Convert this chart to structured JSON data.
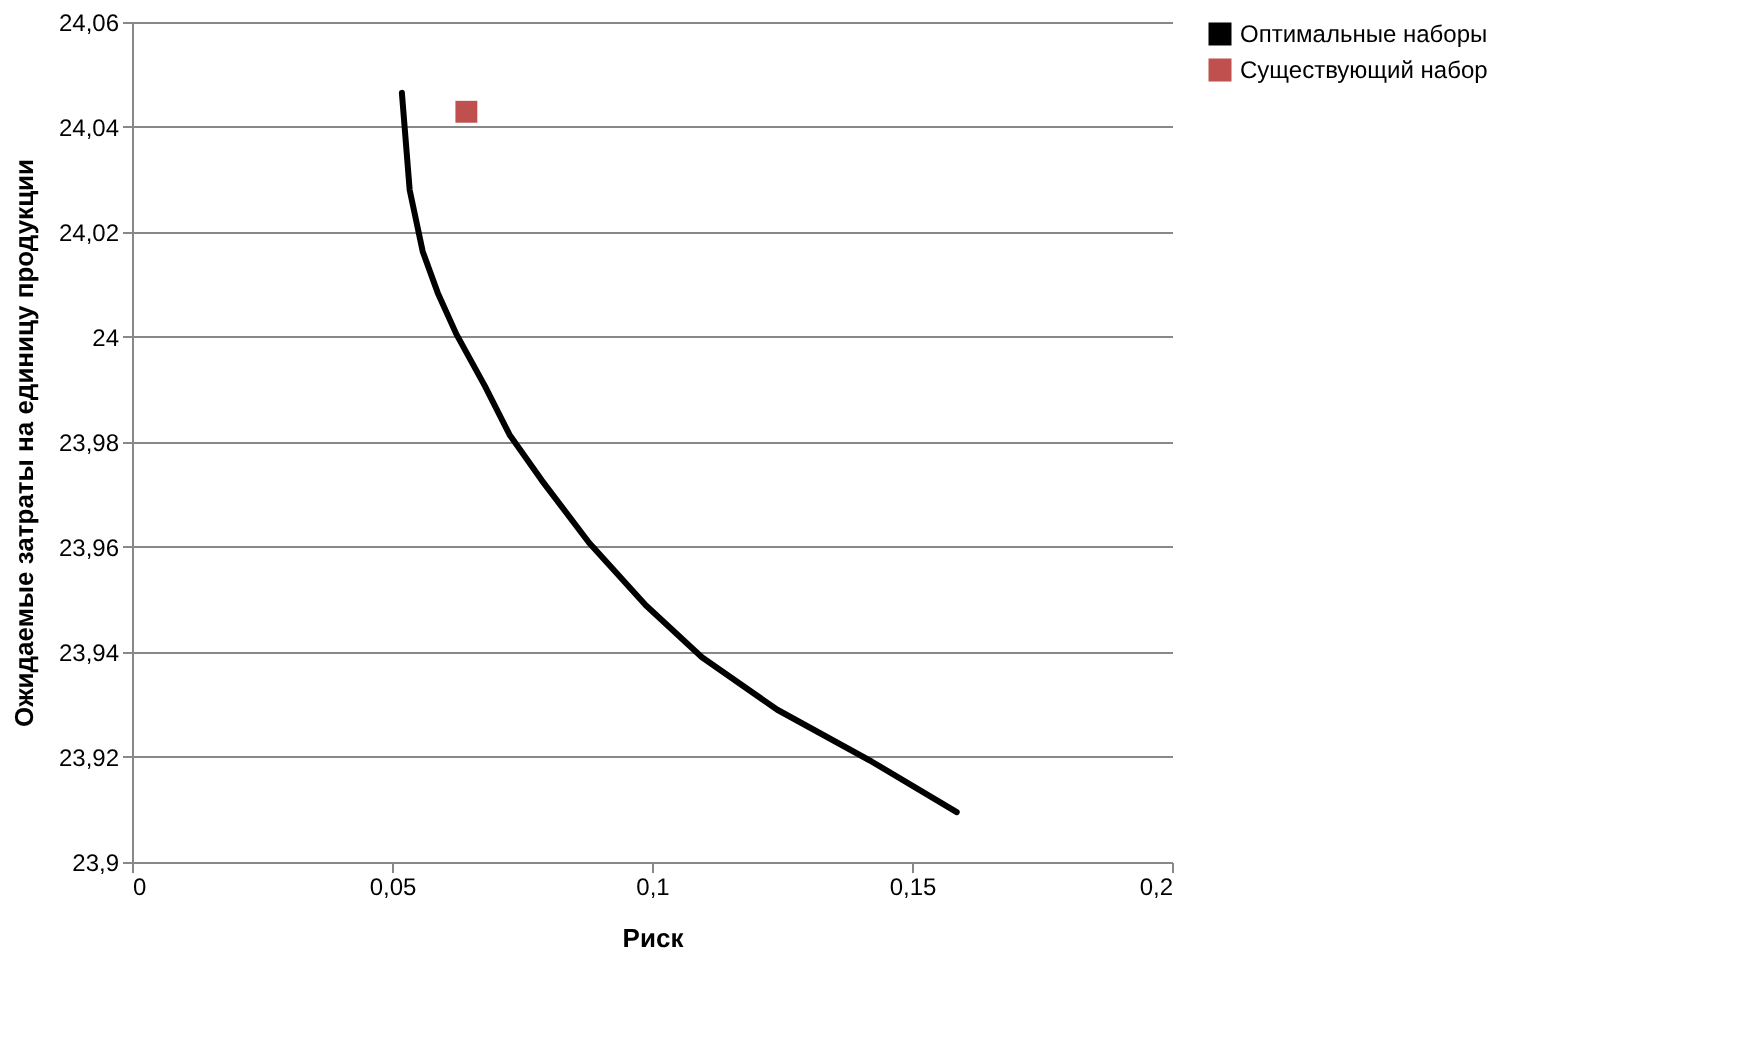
{
  "chart_data": {
    "type": "line",
    "xlabel": "Риск",
    "ylabel": "Ожидаемые затраты на единицу продукции",
    "xlim": [
      0,
      0.2
    ],
    "ylim": [
      23.9,
      24.06
    ],
    "xticks": [
      0,
      {
        "value": 0.05,
        "label": "0,05"
      },
      {
        "value": 0.1,
        "label": "0,1"
      },
      {
        "value": 0.15,
        "label": "0,15"
      },
      {
        "value": 0.2,
        "label": "0,2"
      }
    ],
    "yticks": [
      {
        "value": 23.9,
        "label": "23,9"
      },
      {
        "value": 23.92,
        "label": "23,92"
      },
      {
        "value": 23.94,
        "label": "23,94"
      },
      {
        "value": 23.96,
        "label": "23,96"
      },
      {
        "value": 23.98,
        "label": "23,98"
      },
      24,
      {
        "value": 24.02,
        "label": "24,02"
      },
      {
        "value": 24.04,
        "label": "24,04"
      },
      {
        "value": 24.06,
        "label": "24,06"
      }
    ],
    "grid": "y",
    "legend": "right",
    "series": [
      {
        "name": "Оптимальные наборы",
        "marker": "none",
        "line_style": "solid",
        "color": "#000000",
        "x": [
          0.0519,
          0.0534,
          0.0559,
          0.0588,
          0.0624,
          0.0679,
          0.0726,
          0.0788,
          0.0879,
          0.0988,
          0.1096,
          0.1241,
          0.1423,
          0.1586
        ],
        "values": [
          24.0465,
          24.028,
          24.0163,
          24.0084,
          24.0005,
          23.9906,
          23.9814,
          23.9727,
          23.9608,
          23.9489,
          23.939,
          23.929,
          23.9191,
          23.9095
        ]
      },
      {
        "name": "Существующий набор",
        "type": "scatter",
        "marker": "square",
        "color": "#c0504d",
        "x": [
          0.0643
        ],
        "values": [
          24.0429
        ]
      }
    ]
  }
}
